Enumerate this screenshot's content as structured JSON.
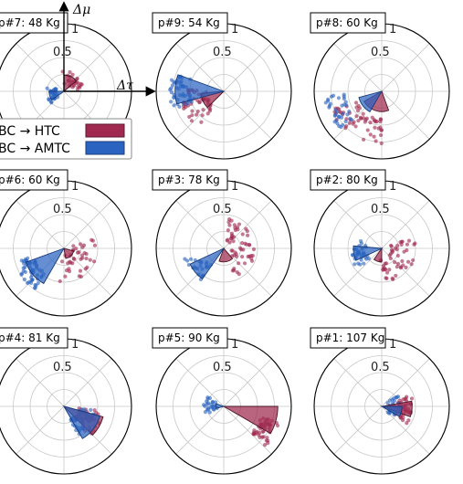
{
  "colors": {
    "htc": "#a0294f",
    "amtc": "#2a64c0",
    "grid": "#c8c8c8",
    "spine": "#000000"
  },
  "chart_data": {
    "type": "polar-scatter-rose",
    "rlim": [
      0,
      1
    ],
    "r_ticks": [
      "0.5",
      "1"
    ],
    "grid": true,
    "axis_labels": {
      "x": "Δτ",
      "y": "Δμ"
    },
    "legend": {
      "placement": "center-left",
      "entries": [
        {
          "label": "BC → HTC",
          "series": "htc"
        },
        {
          "label": "BC → AMTC",
          "series": "amtc"
        }
      ]
    },
    "panels": [
      {
        "title": "p#7: 48 Kg",
        "htc": {
          "wedge": {
            "theta_from": 40,
            "theta_to": 90,
            "r": 0.24
          },
          "points": {
            "angle": 50,
            "spread": 45,
            "r": 0.2,
            "rspread": 0.1,
            "n": 28
          }
        },
        "amtc": {
          "wedge": {
            "theta_from": 180,
            "theta_to": 215,
            "r": 0.22
          },
          "points": {
            "angle": 195,
            "spread": 35,
            "r": 0.18,
            "rspread": 0.08,
            "n": 30
          }
        }
      },
      {
        "title": "p#9: 54 Kg",
        "htc": {
          "wedge": {
            "theta_from": 185,
            "theta_to": 225,
            "r": 0.34
          },
          "points": {
            "angle": 205,
            "spread": 30,
            "r": 0.45,
            "rspread": 0.2,
            "n": 50
          }
        },
        "amtc": {
          "wedge": {
            "theta_from": 160,
            "theta_to": 195,
            "r": 0.72
          },
          "points": {
            "angle": 180,
            "spread": 20,
            "r": 0.65,
            "rspread": 0.15,
            "n": 45
          }
        }
      },
      {
        "title": "p#8: 60 Kg",
        "htc": {
          "wedge": {
            "theta_from": 210,
            "theta_to": 290,
            "r": 0.3
          },
          "points": {
            "angle": 235,
            "spread": 35,
            "r": 0.6,
            "rspread": 0.2,
            "n": 55
          }
        },
        "amtc": {
          "wedge": {
            "theta_from": 195,
            "theta_to": 240,
            "r": 0.35
          },
          "points": {
            "angle": 205,
            "spread": 20,
            "r": 0.7,
            "rspread": 0.15,
            "n": 35
          }
        }
      },
      {
        "title": "p#6: 60 Kg",
        "htc": {
          "wedge": {
            "theta_from": 280,
            "theta_to": 345,
            "r": 0.15
          },
          "points": {
            "angle": 320,
            "spread": 60,
            "r": 0.3,
            "rspread": 0.2,
            "n": 40
          }
        },
        "amtc": {
          "wedge": {
            "theta_from": 200,
            "theta_to": 240,
            "r": 0.6
          },
          "points": {
            "angle": 215,
            "spread": 20,
            "r": 0.6,
            "rspread": 0.15,
            "n": 55
          }
        }
      },
      {
        "title": "p#3: 78 Kg",
        "htc": {
          "wedge": {
            "theta_from": 250,
            "theta_to": 310,
            "r": 0.2
          },
          "points": {
            "angle": 10,
            "spread": 80,
            "r": 0.3,
            "rspread": 0.18,
            "n": 55
          }
        },
        "amtc": {
          "wedge": {
            "theta_from": 205,
            "theta_to": 235,
            "r": 0.55
          },
          "points": {
            "angle": 215,
            "spread": 20,
            "r": 0.45,
            "rspread": 0.15,
            "n": 25
          }
        }
      },
      {
        "title": "p#2: 80 Kg",
        "htc": {
          "wedge": {
            "theta_from": 235,
            "theta_to": 270,
            "r": 0.2
          },
          "points": {
            "angle": 320,
            "spread": 60,
            "r": 0.32,
            "rspread": 0.18,
            "n": 50
          }
        },
        "amtc": {
          "wedge": {
            "theta_from": 175,
            "theta_to": 205,
            "r": 0.42
          },
          "points": {
            "angle": 190,
            "spread": 30,
            "r": 0.35,
            "rspread": 0.12,
            "n": 35
          }
        }
      },
      {
        "title": "p#4: 81 Kg",
        "htc": {
          "wedge": {
            "theta_from": 315,
            "theta_to": 345,
            "r": 0.6
          },
          "points": {
            "angle": 335,
            "spread": 25,
            "r": 0.4,
            "rspread": 0.18,
            "n": 40
          }
        },
        "amtc": {
          "wedge": {
            "theta_from": 300,
            "theta_to": 345,
            "r": 0.55
          },
          "points": {
            "angle": 325,
            "spread": 30,
            "r": 0.35,
            "rspread": 0.15,
            "n": 40
          }
        }
      },
      {
        "title": "p#5: 90 Kg",
        "htc": {
          "wedge": {
            "theta_from": 330,
            "theta_to": 360,
            "r": 0.8
          },
          "points": {
            "angle": 330,
            "spread": 15,
            "r": 0.7,
            "rspread": 0.15,
            "n": 45
          }
        },
        "amtc": {
          "wedge": {
            "theta_from": 160,
            "theta_to": 195,
            "r": 0.12
          },
          "points": {
            "angle": 175,
            "spread": 30,
            "r": 0.2,
            "rspread": 0.1,
            "n": 25
          }
        }
      },
      {
        "title": "p#1: 107 Kg",
        "htc": {
          "wedge": {
            "theta_from": 340,
            "theta_to": 370,
            "r": 0.45
          },
          "points": {
            "angle": 355,
            "spread": 30,
            "r": 0.35,
            "rspread": 0.12,
            "n": 45
          }
        },
        "amtc": {
          "wedge": {
            "theta_from": 330,
            "theta_to": 360,
            "r": 0.3
          },
          "points": {
            "angle": 355,
            "spread": 40,
            "r": 0.2,
            "rspread": 0.1,
            "n": 30
          }
        }
      }
    ]
  }
}
